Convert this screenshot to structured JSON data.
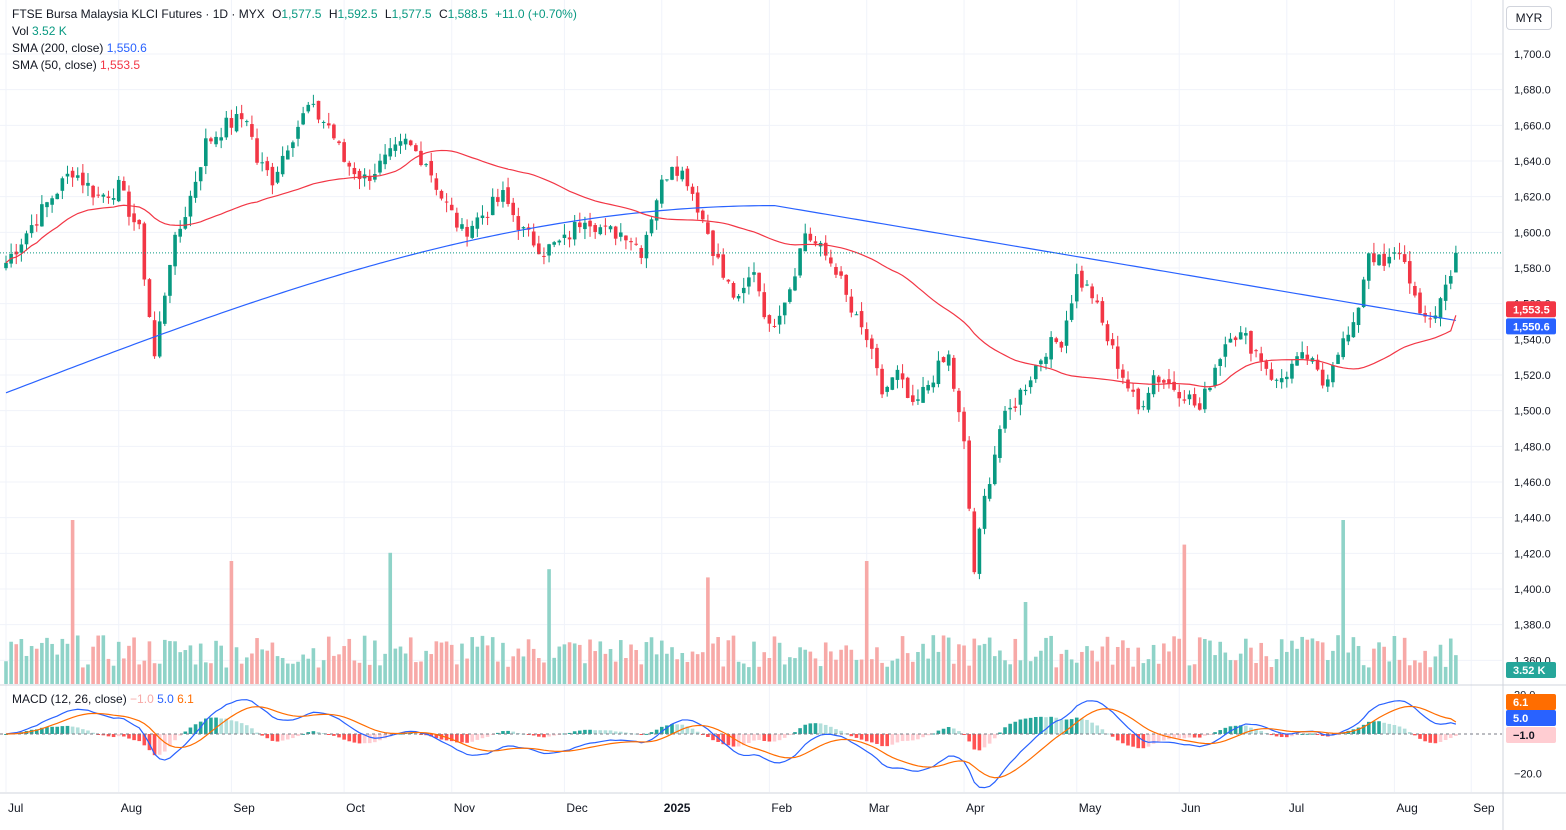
{
  "header": {
    "symbol": "FTSE Bursa Malaysia KLCI Futures · 1D · MYX",
    "o_label": "O",
    "o": "1,577.5",
    "h_label": "H",
    "h": "1,592.5",
    "l_label": "L",
    "l": "1,577.5",
    "c_label": "C",
    "c": "1,588.5",
    "change": "+11.0 (+0.70%)",
    "vol_label": "Vol",
    "vol": "3.52 K",
    "sma200_label": "SMA (200, close)",
    "sma200": "1,550.6",
    "sma50_label": "SMA (50, close)",
    "sma50": "1,553.5"
  },
  "macd_legend": {
    "label": "MACD (12, 26, close)",
    "hist": "−1.0",
    "macd": "5.0",
    "signal": "6.1"
  },
  "currency": "MYR",
  "colors": {
    "up": "#089981",
    "down": "#f23645",
    "sma200": "#2962ff",
    "sma50": "#f23645",
    "macd": "#2962ff",
    "signal": "#ff6d00",
    "vol_up": "#8fd3c8",
    "vol_down": "#f7a9a7"
  },
  "chart_data": [
    {
      "type": "candlestick",
      "title": "FTSE Bursa Malaysia KLCI Futures · 1D · MYX",
      "ylim": [
        1360,
        1710
      ],
      "y_ticks": [
        "1,700.0",
        "1,680.0",
        "1,660.0",
        "1,640.0",
        "1,620.0",
        "1,600.0",
        "1,580.0",
        "1,560.0",
        "1,540.0",
        "1,520.0",
        "1,500.0",
        "1,480.0",
        "1,460.0",
        "1,440.0",
        "1,420.0",
        "1,400.0",
        "1,380.0",
        "1,360.0"
      ],
      "x_ticks": [
        "Jul",
        "Aug",
        "Sep",
        "Oct",
        "Nov",
        "Dec",
        "2025",
        "Feb",
        "Mar",
        "Apr",
        "May",
        "Jun",
        "Jul",
        "Aug",
        "Sep"
      ],
      "price_anchors": [
        [
          0,
          1583
        ],
        [
          4,
          1600
        ],
        [
          9,
          1620
        ],
        [
          13,
          1635
        ],
        [
          18,
          1620
        ],
        [
          22,
          1625
        ],
        [
          26,
          1600
        ],
        [
          29,
          1530
        ],
        [
          32,
          1585
        ],
        [
          36,
          1620
        ],
        [
          39,
          1650
        ],
        [
          43,
          1660
        ],
        [
          47,
          1665
        ],
        [
          49,
          1640
        ],
        [
          52,
          1630
        ],
        [
          55,
          1650
        ],
        [
          59,
          1670
        ],
        [
          63,
          1660
        ],
        [
          66,
          1640
        ],
        [
          70,
          1630
        ],
        [
          74,
          1640
        ],
        [
          78,
          1650
        ],
        [
          82,
          1640
        ],
        [
          85,
          1620
        ],
        [
          89,
          1600
        ],
        [
          93,
          1610
        ],
        [
          97,
          1620
        ],
        [
          101,
          1600
        ],
        [
          105,
          1590
        ],
        [
          109,
          1595
        ],
        [
          113,
          1610
        ],
        [
          117,
          1600
        ],
        [
          121,
          1600
        ],
        [
          124,
          1590
        ],
        [
          127,
          1620
        ],
        [
          130,
          1640
        ],
        [
          133,
          1630
        ],
        [
          137,
          1600
        ],
        [
          140,
          1575
        ],
        [
          143,
          1560
        ],
        [
          146,
          1580
        ],
        [
          149,
          1545
        ],
        [
          153,
          1570
        ],
        [
          156,
          1600
        ],
        [
          159,
          1590
        ],
        [
          162,
          1580
        ],
        [
          165,
          1555
        ],
        [
          168,
          1540
        ],
        [
          171,
          1510
        ],
        [
          174,
          1520
        ],
        [
          177,
          1500
        ],
        [
          181,
          1520
        ],
        [
          184,
          1530
        ],
        [
          187,
          1480
        ],
        [
          189,
          1410
        ],
        [
          191,
          1450
        ],
        [
          194,
          1490
        ],
        [
          197,
          1505
        ],
        [
          200,
          1520
        ],
        [
          203,
          1535
        ],
        [
          206,
          1540
        ],
        [
          209,
          1575
        ],
        [
          212,
          1565
        ],
        [
          215,
          1540
        ],
        [
          218,
          1520
        ],
        [
          221,
          1500
        ],
        [
          224,
          1520
        ],
        [
          227,
          1515
        ],
        [
          230,
          1510
        ],
        [
          233,
          1500
        ],
        [
          236,
          1525
        ],
        [
          239,
          1545
        ],
        [
          242,
          1540
        ],
        [
          245,
          1530
        ],
        [
          248,
          1515
        ],
        [
          251,
          1525
        ],
        [
          254,
          1530
        ],
        [
          257,
          1515
        ],
        [
          260,
          1535
        ],
        [
          263,
          1545
        ],
        [
          266,
          1590
        ],
        [
          269,
          1580
        ],
        [
          272,
          1590
        ],
        [
          274,
          1575
        ],
        [
          276,
          1550
        ],
        [
          279,
          1555
        ],
        [
          281,
          1570
        ],
        [
          283,
          1588.5
        ]
      ],
      "last": {
        "open": 1577.5,
        "high": 1592.5,
        "low": 1577.5,
        "close": 1588.5,
        "change": 11.0
      },
      "sma200": {
        "last": 1550.6,
        "start": 1510,
        "peak": 1615
      },
      "sma50": {
        "last": 1553.5,
        "low": 1508,
        "high": 1649
      },
      "last_price_line": 1588.5
    },
    {
      "type": "bar",
      "title": "Vol",
      "last": "3.52 K",
      "typical_range": [
        2,
        6
      ],
      "spikes": [
        20,
        15,
        16,
        14,
        13,
        15,
        10,
        17,
        20
      ]
    },
    {
      "type": "line+histogram",
      "title": "MACD (12, 26, close)",
      "ylim": [
        -25,
        22
      ],
      "y_ticks": [
        "20.0",
        "−20.0"
      ],
      "last": {
        "histogram": -1.0,
        "macd": 5.0,
        "signal": 6.1
      }
    }
  ]
}
